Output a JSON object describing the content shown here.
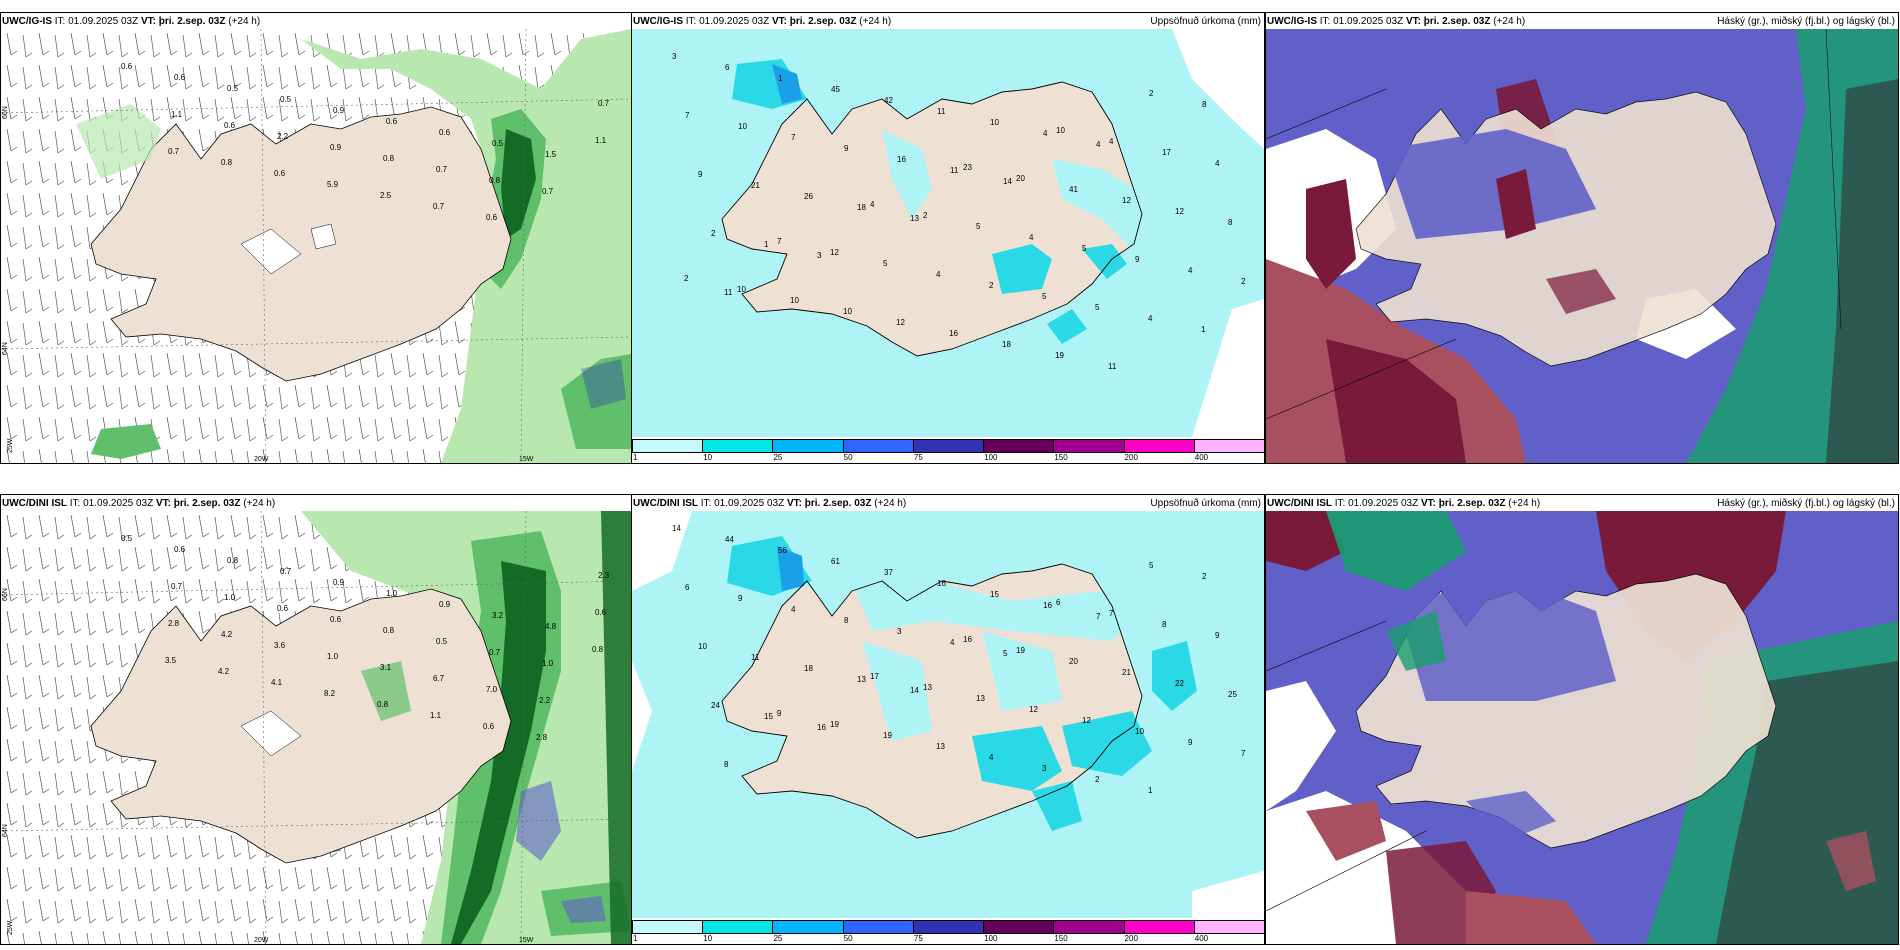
{
  "panels": {
    "wind_top": {
      "model": "UWC/IG-IS",
      "it_label": "IT:",
      "it": "01.09.2025 03Z",
      "vt_label": "VT:",
      "vt": "þri. 2.sep. 03Z",
      "lead": "(+24 h)",
      "title_right": ""
    },
    "precip_top": {
      "model": "UWC/IG-IS",
      "it_label": "IT:",
      "it": "01.09.2025 03Z",
      "vt_label": "VT:",
      "vt": "þri. 2.sep. 03Z",
      "lead": "(+24 h)",
      "title_right": "Uppsöfnuð úrkoma (mm)"
    },
    "cloud_top": {
      "model": "UWC/IG-IS",
      "it_label": "IT:",
      "it": "01.09.2025 03Z",
      "vt_label": "VT:",
      "vt": "þri. 2.sep. 03Z",
      "lead": "(+24 h)",
      "title_right": "Háský (gr.), miðský (fj.bl.) og lágský (bl.)"
    },
    "wind_bot": {
      "model": "UWC/DINI ISL",
      "it_label": "IT:",
      "it": "01.09.2025 03Z",
      "vt_label": "VT:",
      "vt": "þri. 2.sep. 03Z",
      "lead": "(+24 h)",
      "title_right": ""
    },
    "precip_bot": {
      "model": "UWC/DINI ISL",
      "it_label": "IT:",
      "it": "01.09.2025 03Z",
      "vt_label": "VT:",
      "vt": "þri. 2.sep. 03Z",
      "lead": "(+24 h)",
      "title_right": "Uppsöfnuð úrkoma (mm)"
    },
    "cloud_bot": {
      "model": "UWC/DINI ISL",
      "it_label": "IT:",
      "it": "01.09.2025 03Z",
      "vt_label": "VT:",
      "vt": "þri. 2.sep. 03Z",
      "lead": "(+24 h)",
      "title_right": "Háský (gr.), miðský (fj.bl.) og lágský (bl.)"
    }
  },
  "axis_labels": {
    "lat66": "66N",
    "lat64": "64N",
    "lon25": "25W",
    "lon20": "20W",
    "lon15": "15W"
  },
  "colorbar": {
    "ticks": [
      "1",
      "10",
      "25",
      "50",
      "75",
      "100",
      "150",
      "200",
      "400"
    ],
    "colors": [
      "#c4fafa",
      "#00e6e6",
      "#00b4ff",
      "#3264ff",
      "#3232b4",
      "#64005a",
      "#a0008c",
      "#ff00c8",
      "#ffb4ff"
    ]
  },
  "colors": {
    "land": "#eee1d3",
    "sea_precip": "#aef4f6",
    "precip_cyan": "#2bd9e6",
    "precip_blue": "#1aa0e8",
    "wind_light": "#b8e8b0",
    "wind_mid": "#5fbf6a",
    "wind_dark": "#146b26",
    "high_cloud": "#1a9e6e",
    "mid_cloud": "#6060c8",
    "low_cloud": "#7a1a3a"
  },
  "wind_top_labels": [
    "0.6",
    "0.6",
    "0.5",
    "0.5",
    "0.9",
    "0.6",
    "0.6",
    "0.5",
    "1.5",
    "0.7",
    "1.1",
    "0.6",
    "2.2",
    "0.9",
    "0.8",
    "0.7",
    "0.8",
    "0.7",
    "1.1",
    "0.7",
    "0.8",
    "0.6",
    "5.9",
    "2.5",
    "0.7",
    "0.6"
  ],
  "wind_bot_labels": [
    "0.5",
    "0.6",
    "0.8",
    "0.7",
    "0.9",
    "1.0",
    "0.9",
    "3.2",
    "4.8",
    "2.3",
    "0.7",
    "1.0",
    "0.6",
    "0.6",
    "0.8",
    "0.5",
    "0.7",
    "1.0",
    "0.6",
    "2.8",
    "4.2",
    "3.6",
    "1.0",
    "3.1",
    "6.7",
    "7.0",
    "2.2",
    "0.8",
    "3.5",
    "4.2",
    "4.1",
    "8.2",
    "0.8",
    "1.1",
    "0.6",
    "2.8"
  ],
  "precip_top_labels": [
    "3",
    "6",
    "1",
    "45",
    "42",
    "11",
    "10",
    "4",
    "4",
    "2",
    "8",
    "7",
    "10",
    "7",
    "9",
    "16",
    "11",
    "14",
    "10",
    "4",
    "17",
    "4",
    "9",
    "21",
    "26",
    "18",
    "13",
    "23",
    "20",
    "41",
    "12",
    "12",
    "8",
    "2",
    "1",
    "3",
    "4",
    "2",
    "5",
    "4",
    "5",
    "9",
    "4",
    "2",
    "11",
    "7",
    "12",
    "5",
    "4",
    "2",
    "5",
    "5",
    "4",
    "1",
    "2",
    "10",
    "10",
    "10",
    "12",
    "16",
    "18",
    "19",
    "11"
  ],
  "precip_bot_labels": [
    "14",
    "44",
    "56",
    "61",
    "37",
    "16",
    "15",
    "16",
    "7",
    "5",
    "2",
    "6",
    "9",
    "4",
    "8",
    "3",
    "4",
    "5",
    "6",
    "7",
    "8",
    "9",
    "10",
    "11",
    "18",
    "13",
    "14",
    "16",
    "19",
    "20",
    "21",
    "22",
    "25",
    "24",
    "15",
    "16",
    "17",
    "13",
    "13",
    "12",
    "12",
    "10",
    "9",
    "7",
    "8",
    "9",
    "19",
    "19",
    "13",
    "4",
    "3",
    "2",
    "1"
  ]
}
